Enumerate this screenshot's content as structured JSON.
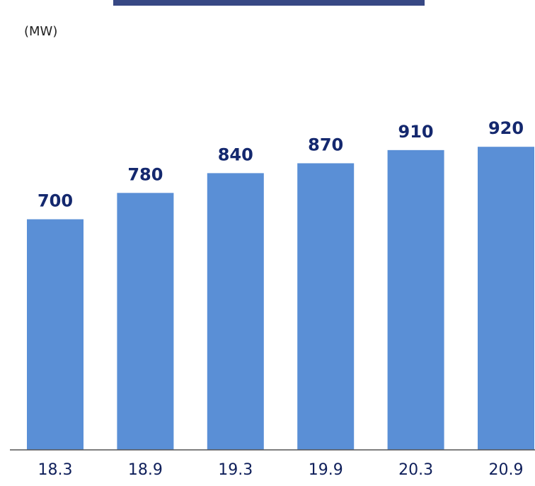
{
  "chart_data": {
    "type": "bar",
    "unit_label": "(MW)",
    "categories": [
      "18.3",
      "18.9",
      "19.3",
      "19.9",
      "20.3",
      "20.9"
    ],
    "values": [
      700,
      780,
      840,
      870,
      910,
      920
    ],
    "value_labels": [
      "700",
      "780",
      "840",
      "870",
      "910",
      "920"
    ],
    "ylim": [
      0,
      1100
    ],
    "grid": false,
    "legend": "none",
    "colors": {
      "bar": "#5a8fd6",
      "value_label": "#14286e",
      "tick_label": "#0f1f5a",
      "axis": "#555555"
    }
  }
}
